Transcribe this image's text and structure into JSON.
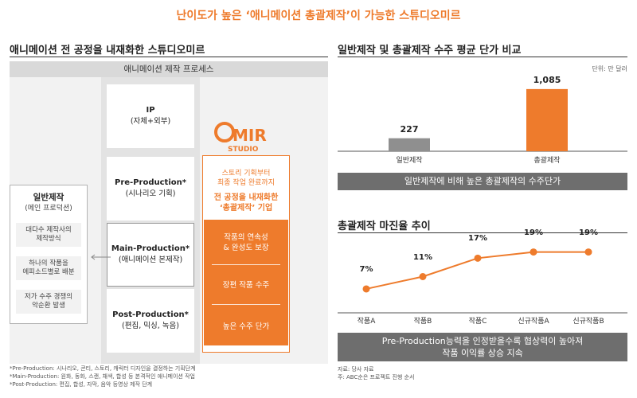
{
  "main_title": "난이도가 높은 ‘애니메이션 총괄제작’이 가능한 스튜디오미르",
  "left": {
    "title": "애니메이션 전 공정을 내재화한 스튜디오미르",
    "process_header": "애니메이션 제작 프로세스",
    "stages": {
      "ip": {
        "label": "IP",
        "sub": "(자체+외부)"
      },
      "pre": {
        "label": "Pre-Production*",
        "sub": "(시나리오 기획)"
      },
      "main": {
        "label": "Main-Production*",
        "sub": "(애니메이션 본제작)"
      },
      "post": {
        "label": "Post-Production*",
        "sub": "(편집, 믹싱, 녹음)"
      }
    },
    "logo": {
      "letters": "MIR",
      "studio": "STUDIO"
    },
    "studio": {
      "line1": "스토리 기획부터",
      "line2": "최종 작업 완료까지",
      "line3": "전 공정을 내재화한",
      "line4": "‘총괄제작’ 기업",
      "strengths": [
        "작품의 연속성",
        "& 완성도 보장",
        "장편 작품 수주",
        "높은 수주 단가"
      ]
    },
    "general": {
      "title": "일반제작",
      "sub": "(메인 프로덕션)",
      "items": [
        "대다수 제작사의",
        "제작방식",
        "하나의 작품을",
        "에피소드별로 배분",
        "저가 수주 경쟁의",
        "악순환 발생"
      ]
    },
    "footnotes": [
      "*Pre-Production: 시나리오, 콘티, 스토리, 캐릭터 디자인을 결정하는 기획단계",
      "*Main-Production: 원화, 동화, 스캔, 채색, 합성 등 본격적인 애니메이션 작업",
      "*Post-Production: 편집, 합성, 자막, 음악 등영상 제작 단계"
    ]
  },
  "right_top": {
    "title": "일반제작 및 총괄제작 수주 평균 단가 비교",
    "unit": "단위: 만 달러",
    "banner": "일반제작에 비해 높은 총괄제작의 수주단가"
  },
  "right_bottom": {
    "title": "총괄제작 마진율 추이",
    "banner_line1": "Pre-Production능력을 인정받을수록 협상력이 높아져",
    "banner_line2": "작품 이익률 상승 지속"
  },
  "source_lines": [
    "자료: 당사 자료",
    "주: ABC순은 프로젝트 진행 순서"
  ],
  "colors": {
    "accent": "#ee7b2c",
    "gray_bar": "#8f8f8f",
    "banner": "#6e6e6e"
  },
  "chart_data": [
    {
      "type": "bar",
      "title": "일반제작 및 총괄제작 수주 평균 단가 비교",
      "categories": [
        "일반제작",
        "총괄제작"
      ],
      "values": [
        227,
        1085
      ],
      "value_labels": [
        "227",
        "1,085"
      ],
      "unit": "단위: 만 달러",
      "ylim": [
        0,
        1250
      ]
    },
    {
      "type": "line",
      "title": "총괄제작 마진율 추이",
      "categories": [
        "작품A",
        "작품B",
        "작품C",
        "신규작품A",
        "신규작품B"
      ],
      "values": [
        7,
        11,
        17,
        19,
        19
      ],
      "value_labels": [
        "7%",
        "11%",
        "17%",
        "19%",
        "19%"
      ],
      "ylim": [
        0,
        22
      ]
    }
  ]
}
